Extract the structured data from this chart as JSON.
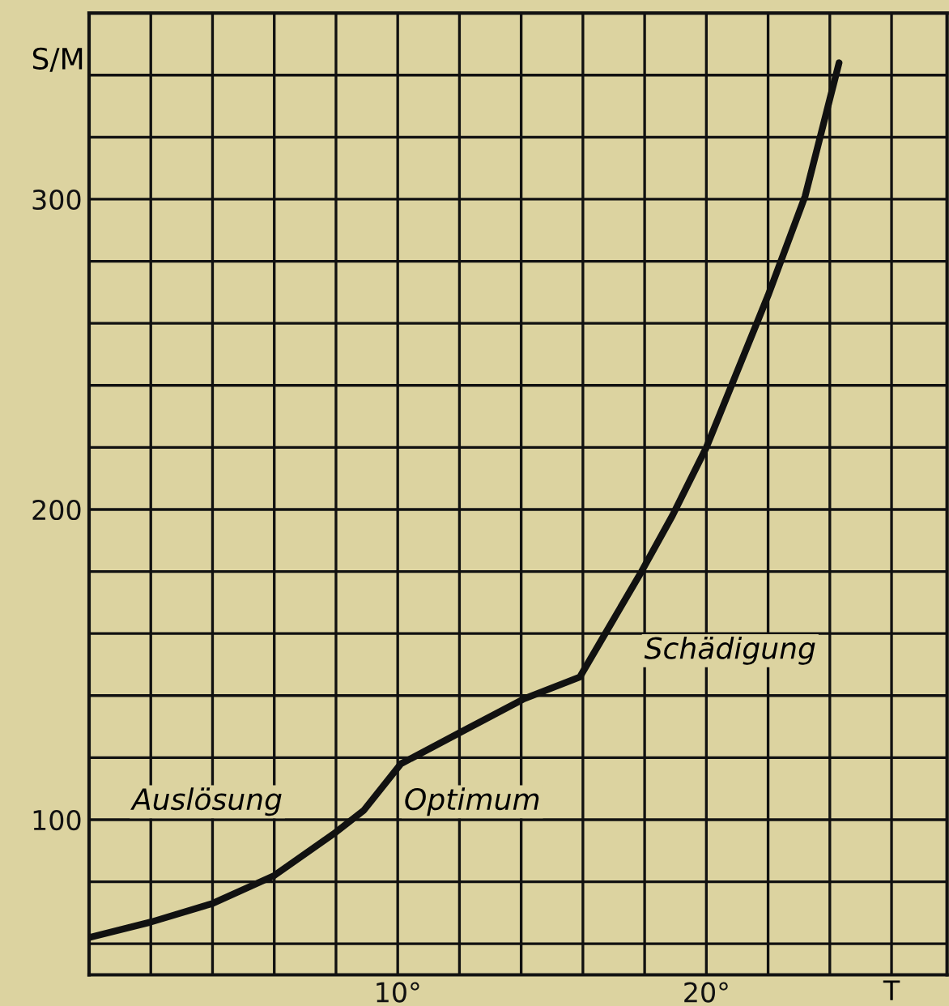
{
  "chart_data": {
    "type": "line",
    "ylabel": "S/M",
    "xlabel": "T",
    "x": [
      0,
      2.0,
      4.0,
      6.0,
      8.0,
      8.9,
      10.1,
      12.0,
      14.1,
      15.9,
      17.9,
      18.9,
      20.0,
      22.0,
      23.2,
      24.3
    ],
    "values": [
      62,
      67,
      73,
      82,
      96,
      103,
      118,
      128,
      139,
      146,
      180,
      198,
      220,
      269,
      301,
      344
    ],
    "color": "#111111",
    "line_style": "solid",
    "marker": "none",
    "xlim": [
      0,
      27.8
    ],
    "ylim": [
      50,
      360
    ],
    "xticks": [
      {
        "value": 2,
        "label": null
      },
      {
        "value": 4,
        "label": null
      },
      {
        "value": 6,
        "label": null
      },
      {
        "value": 8,
        "label": null
      },
      {
        "value": 10,
        "label": "10°"
      },
      {
        "value": 12,
        "label": null
      },
      {
        "value": 14,
        "label": null
      },
      {
        "value": 16,
        "label": null
      },
      {
        "value": 18,
        "label": null
      },
      {
        "value": 20,
        "label": "20°"
      },
      {
        "value": 22,
        "label": null
      },
      {
        "value": 24,
        "label": null
      },
      {
        "value": 26,
        "label": null
      }
    ],
    "yticks": [
      {
        "value": 60,
        "label": null
      },
      {
        "value": 80,
        "label": null
      },
      100,
      {
        "value": 120,
        "label": null
      },
      {
        "value": 140,
        "label": null
      },
      {
        "value": 160,
        "label": null
      },
      {
        "value": 180,
        "label": null
      },
      200,
      {
        "value": 220,
        "label": null
      },
      {
        "value": 240,
        "label": null
      },
      {
        "value": 260,
        "label": null
      },
      {
        "value": 280,
        "label": null
      },
      300,
      {
        "value": 320,
        "label": null
      },
      {
        "value": 340,
        "label": null
      },
      {
        "value": 360,
        "label": null
      }
    ],
    "grid": true,
    "annotations": [
      "Auslösung",
      "Optimum",
      "Schädigung"
    ]
  }
}
